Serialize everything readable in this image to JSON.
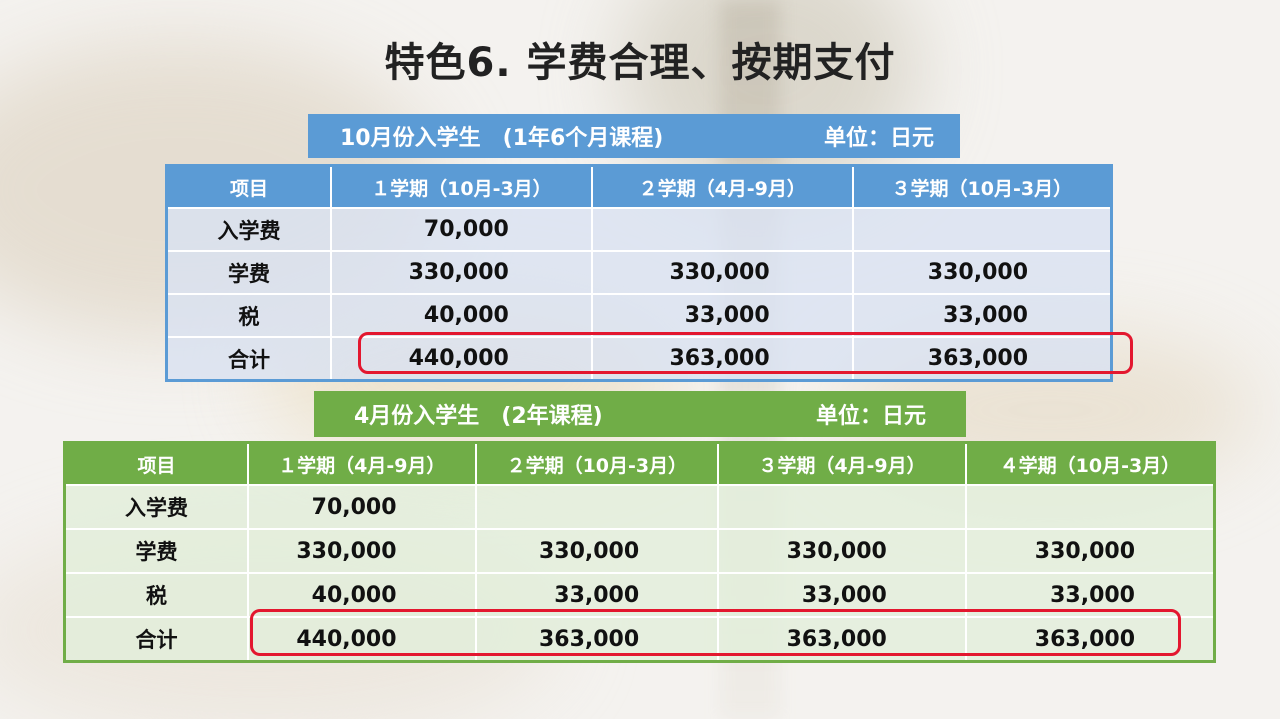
{
  "title": "特色6. 学费合理、按期支付",
  "table1": {
    "caption_left": "10月份入学生　(1年6个月课程)",
    "caption_right": "单位：日元",
    "headers": [
      "项目",
      "１学期（10月-3月）",
      "２学期（4月-9月）",
      "３学期（10月-3月）"
    ],
    "rows": [
      {
        "label": "入学费",
        "values": [
          "70,000",
          "",
          ""
        ]
      },
      {
        "label": "学费",
        "values": [
          "330,000",
          "330,000",
          "330,000"
        ]
      },
      {
        "label": "税",
        "values": [
          "40,000",
          "33,000",
          "33,000"
        ]
      },
      {
        "label": "合计",
        "values": [
          "440,000",
          "363,000",
          "363,000"
        ]
      }
    ]
  },
  "table2": {
    "caption_left": "4月份入学生　(2年课程)",
    "caption_right": "单位：日元",
    "headers": [
      "项目",
      "１学期（4月-9月）",
      "２学期（10月-3月）",
      "３学期（4月-9月）",
      "４学期（10月-3月）"
    ],
    "rows": [
      {
        "label": "入学费",
        "values": [
          "70,000",
          "",
          "",
          ""
        ]
      },
      {
        "label": "学费",
        "values": [
          "330,000",
          "330,000",
          "330,000",
          "330,000"
        ]
      },
      {
        "label": "税",
        "values": [
          "40,000",
          "33,000",
          "33,000",
          "33,000"
        ]
      },
      {
        "label": "合计",
        "values": [
          "440,000",
          "363,000",
          "363,000",
          "363,000"
        ]
      }
    ]
  },
  "colors": {
    "table1_header": "#5b9bd5",
    "table2_header": "#70ad47",
    "highlight": "#e3172f"
  }
}
